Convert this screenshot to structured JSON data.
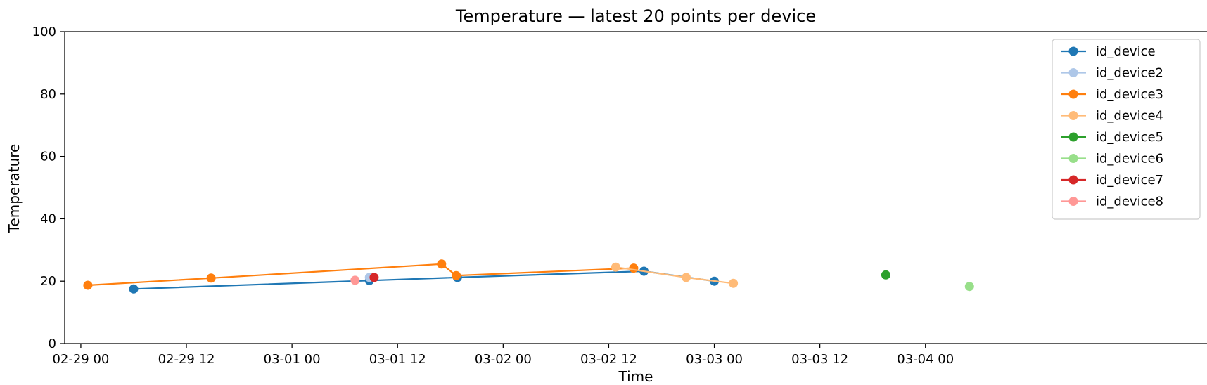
{
  "chart_data": {
    "type": "line",
    "title": "Temperature — latest 20 points per device",
    "xlabel": "Time",
    "ylabel": "Temperature",
    "ylim": [
      0,
      100
    ],
    "xlim": [
      "2024-02-28T22:10",
      "2024-03-05T08:00"
    ],
    "x_ticks": [
      {
        "t": "2024-02-29T00:00",
        "label": "02-29 00"
      },
      {
        "t": "2024-02-29T12:00",
        "label": "02-29 12"
      },
      {
        "t": "2024-03-01T00:00",
        "label": "03-01 00"
      },
      {
        "t": "2024-03-01T12:00",
        "label": "03-01 12"
      },
      {
        "t": "2024-03-02T00:00",
        "label": "03-02 00"
      },
      {
        "t": "2024-03-02T12:00",
        "label": "03-02 12"
      },
      {
        "t": "2024-03-03T00:00",
        "label": "03-03 00"
      },
      {
        "t": "2024-03-03T12:00",
        "label": "03-03 12"
      },
      {
        "t": "2024-03-04T00:00",
        "label": "03-04 00"
      }
    ],
    "y_ticks": [
      0,
      20,
      40,
      60,
      80,
      100
    ],
    "grid": false,
    "legend_position": "top-right",
    "series": [
      {
        "name": "id_device",
        "color": "#1f77b4",
        "points": [
          {
            "x": "2024-02-29T06:00",
            "y": 17.5
          },
          {
            "x": "2024-03-01T08:48",
            "y": 20.2
          },
          {
            "x": "2024-03-01T18:48",
            "y": 21.2
          },
          {
            "x": "2024-03-02T16:00",
            "y": 23.2
          },
          {
            "x": "2024-03-03T00:00",
            "y": 20.0
          }
        ]
      },
      {
        "name": "id_device2",
        "color": "#aec7e8",
        "points": [
          {
            "x": "2024-03-01T08:48",
            "y": 21.2
          }
        ]
      },
      {
        "name": "id_device3",
        "color": "#ff7f0e",
        "points": [
          {
            "x": "2024-02-29T00:48",
            "y": 18.7
          },
          {
            "x": "2024-02-29T14:48",
            "y": 21.0
          },
          {
            "x": "2024-03-01T17:00",
            "y": 25.5
          },
          {
            "x": "2024-03-01T18:40",
            "y": 21.8
          },
          {
            "x": "2024-03-02T14:50",
            "y": 24.2
          }
        ]
      },
      {
        "name": "id_device4",
        "color": "#ffbb78",
        "points": [
          {
            "x": "2024-03-02T12:48",
            "y": 24.5
          },
          {
            "x": "2024-03-02T20:48",
            "y": 21.2
          },
          {
            "x": "2024-03-03T02:10",
            "y": 19.3
          }
        ]
      },
      {
        "name": "id_device5",
        "color": "#2ca02c",
        "points": [
          {
            "x": "2024-03-03T19:30",
            "y": 22.0
          }
        ]
      },
      {
        "name": "id_device6",
        "color": "#98df8a",
        "points": [
          {
            "x": "2024-03-04T05:00",
            "y": 18.3
          }
        ]
      },
      {
        "name": "id_device7",
        "color": "#d62728",
        "points": [
          {
            "x": "2024-03-01T09:20",
            "y": 21.2
          }
        ]
      },
      {
        "name": "id_device8",
        "color": "#ff9896",
        "points": [
          {
            "x": "2024-03-01T07:10",
            "y": 20.3
          }
        ]
      }
    ]
  }
}
